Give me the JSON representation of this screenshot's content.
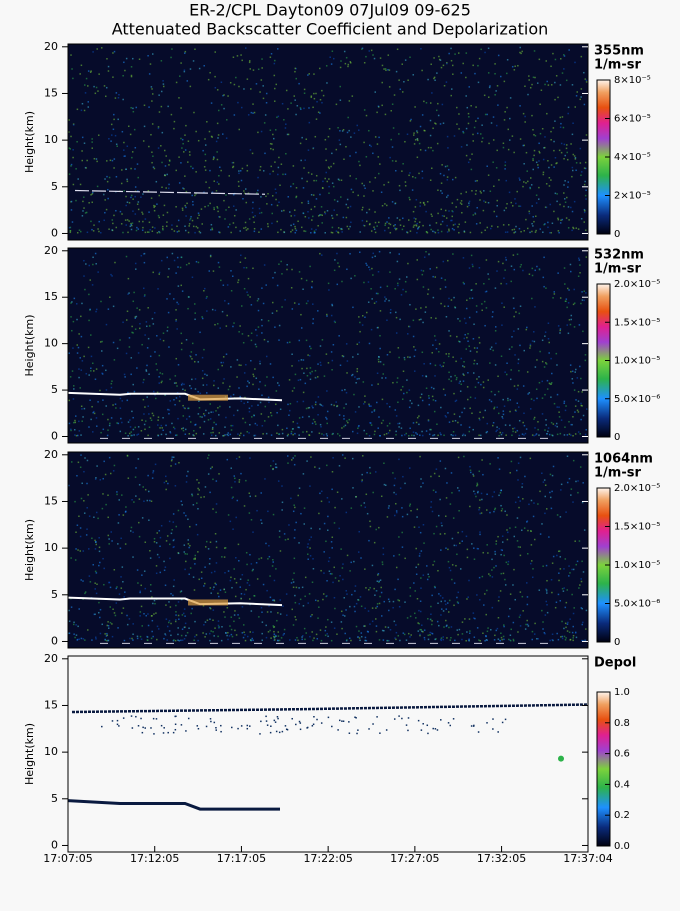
{
  "title": [
    "ER-2/CPL Dayton09 07Jul09 09-625",
    "Attenuated Backscatter Coefficient and Depolarization"
  ],
  "chart_data": [
    {
      "type": "heatmap",
      "ylabel": "Height(km)",
      "ylim": [
        -0.7,
        20.3
      ],
      "yticks": [
        0,
        5,
        10,
        15,
        20
      ],
      "colorbar": {
        "label": [
          "355nm",
          "1/m-sr"
        ],
        "lim": [
          0,
          8e-05
        ],
        "ticks": [
          0,
          {
            "value": 2e-05,
            "label": "2×10⁻⁵"
          },
          {
            "value": 4e-05,
            "label": "4×10⁻⁵"
          },
          {
            "value": 6e-05,
            "label": "6×10⁻⁵"
          },
          {
            "value": 8e-05,
            "label": "8×10⁻⁵"
          }
        ]
      }
    },
    {
      "type": "heatmap",
      "ylabel": "Height(km)",
      "ylim": [
        -0.7,
        20.3
      ],
      "yticks": [
        0,
        5,
        10,
        15,
        20
      ],
      "colorbar": {
        "label": [
          "532nm",
          "1/m-sr"
        ],
        "lim": [
          0,
          2e-05
        ],
        "ticks": [
          0,
          {
            "value": 5e-06,
            "label": "5.0×10⁻⁶"
          },
          {
            "value": 1e-05,
            "label": "1.0×10⁻⁵"
          },
          {
            "value": 1.5e-05,
            "label": "1.5×10⁻⁵"
          },
          {
            "value": 2e-05,
            "label": "2.0×10⁻⁵"
          }
        ]
      }
    },
    {
      "type": "heatmap",
      "ylabel": "Height(km)",
      "ylim": [
        -0.7,
        20.3
      ],
      "yticks": [
        0,
        5,
        10,
        15,
        20
      ],
      "colorbar": {
        "label": [
          "1064nm",
          "1/m-sr"
        ],
        "lim": [
          0,
          2e-05
        ],
        "ticks": [
          0,
          {
            "value": 5e-06,
            "label": "5.0×10⁻⁶"
          },
          {
            "value": 1e-05,
            "label": "1.0×10⁻⁵"
          },
          {
            "value": 1.5e-05,
            "label": "1.5×10⁻⁵"
          },
          {
            "value": 2e-05,
            "label": "2.0×10⁻⁵"
          }
        ]
      }
    },
    {
      "type": "heatmap",
      "ylabel": "Height(km)",
      "ylim": [
        -0.7,
        20.3
      ],
      "yticks": [
        0,
        5,
        10,
        15,
        20
      ],
      "xlim": [
        "17:07:05",
        "17:37:04"
      ],
      "xticks": [
        "17:07:05",
        "17:12:05",
        "17:17:05",
        "17:22:05",
        "17:27:05",
        "17:32:05",
        "17:37:04"
      ],
      "colorbar": {
        "label": [
          "Depol"
        ],
        "lim": [
          0,
          1
        ],
        "ticks": [
          {
            "value": 0,
            "label": "0.0"
          },
          0.2,
          0.4,
          0.6,
          0.8,
          {
            "value": 1,
            "label": "1.0"
          }
        ]
      }
    }
  ]
}
